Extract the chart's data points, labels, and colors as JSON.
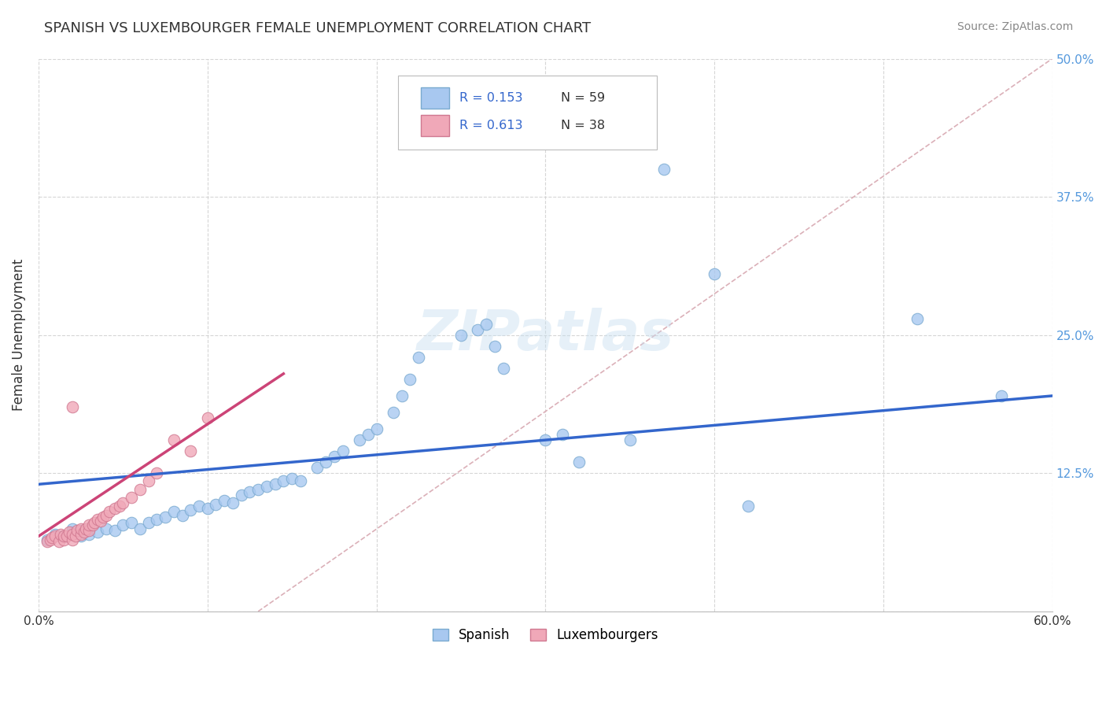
{
  "title": "SPANISH VS LUXEMBOURGER FEMALE UNEMPLOYMENT CORRELATION CHART",
  "source_text": "Source: ZipAtlas.com",
  "xlabel": "",
  "ylabel": "Female Unemployment",
  "xlim": [
    0.0,
    0.6
  ],
  "ylim": [
    0.0,
    0.5
  ],
  "xticks": [
    0.0,
    0.1,
    0.2,
    0.3,
    0.4,
    0.5,
    0.6
  ],
  "xticklabels": [
    "0.0%",
    "",
    "",
    "",
    "",
    "",
    "60.0%"
  ],
  "yticks": [
    0.0,
    0.125,
    0.25,
    0.375,
    0.5
  ],
  "yticklabels": [
    "",
    "12.5%",
    "25.0%",
    "37.5%",
    "50.0%"
  ],
  "background_color": "#ffffff",
  "grid_color": "#cccccc",
  "watermark": "ZIPatlas",
  "legend_r1": "R = 0.153",
  "legend_n1": "N = 59",
  "legend_r2": "R = 0.613",
  "legend_n2": "N = 38",
  "spanish_color": "#a8c8f0",
  "luxembourger_color": "#f0a8b8",
  "spanish_edge": "#7aaad0",
  "luxembourger_edge": "#d07890",
  "spanish_points_x": [
    0.005,
    0.01,
    0.015,
    0.02,
    0.02,
    0.025,
    0.025,
    0.03,
    0.03,
    0.035,
    0.04,
    0.045,
    0.05,
    0.055,
    0.06,
    0.065,
    0.07,
    0.075,
    0.08,
    0.085,
    0.09,
    0.095,
    0.1,
    0.105,
    0.11,
    0.115,
    0.12,
    0.125,
    0.13,
    0.135,
    0.14,
    0.145,
    0.15,
    0.155,
    0.165,
    0.17,
    0.175,
    0.18,
    0.19,
    0.195,
    0.2,
    0.21,
    0.215,
    0.22,
    0.225,
    0.25,
    0.26,
    0.265,
    0.27,
    0.275,
    0.3,
    0.31,
    0.32,
    0.35,
    0.37,
    0.4,
    0.42,
    0.52,
    0.57
  ],
  "spanish_points_y": [
    0.065,
    0.07,
    0.068,
    0.072,
    0.075,
    0.068,
    0.073,
    0.07,
    0.075,
    0.072,
    0.075,
    0.073,
    0.078,
    0.08,
    0.075,
    0.08,
    0.083,
    0.085,
    0.09,
    0.087,
    0.092,
    0.095,
    0.093,
    0.097,
    0.1,
    0.098,
    0.105,
    0.108,
    0.11,
    0.113,
    0.115,
    0.118,
    0.12,
    0.118,
    0.13,
    0.135,
    0.14,
    0.145,
    0.155,
    0.16,
    0.165,
    0.18,
    0.195,
    0.21,
    0.23,
    0.25,
    0.255,
    0.26,
    0.24,
    0.22,
    0.155,
    0.16,
    0.135,
    0.155,
    0.4,
    0.305,
    0.095,
    0.265,
    0.195
  ],
  "luxembourger_points_x": [
    0.005,
    0.007,
    0.008,
    0.01,
    0.012,
    0.013,
    0.015,
    0.015,
    0.017,
    0.018,
    0.02,
    0.02,
    0.022,
    0.023,
    0.025,
    0.025,
    0.027,
    0.028,
    0.03,
    0.03,
    0.032,
    0.033,
    0.035,
    0.037,
    0.038,
    0.04,
    0.042,
    0.045,
    0.048,
    0.05,
    0.055,
    0.06,
    0.065,
    0.07,
    0.08,
    0.09,
    0.1,
    0.02
  ],
  "luxembourger_points_y": [
    0.063,
    0.065,
    0.067,
    0.068,
    0.063,
    0.07,
    0.065,
    0.068,
    0.068,
    0.072,
    0.065,
    0.07,
    0.068,
    0.073,
    0.07,
    0.075,
    0.072,
    0.075,
    0.073,
    0.078,
    0.078,
    0.08,
    0.083,
    0.082,
    0.085,
    0.087,
    0.09,
    0.093,
    0.095,
    0.098,
    0.103,
    0.11,
    0.118,
    0.125,
    0.155,
    0.145,
    0.175,
    0.185
  ],
  "ref_line_x": [
    0.13,
    0.6
  ],
  "ref_line_y": [
    0.0,
    0.5
  ],
  "blue_trend_x": [
    0.0,
    0.6
  ],
  "blue_trend_y": [
    0.115,
    0.195
  ],
  "pink_trend_x": [
    0.0,
    0.145
  ],
  "pink_trend_y": [
    0.068,
    0.215
  ]
}
